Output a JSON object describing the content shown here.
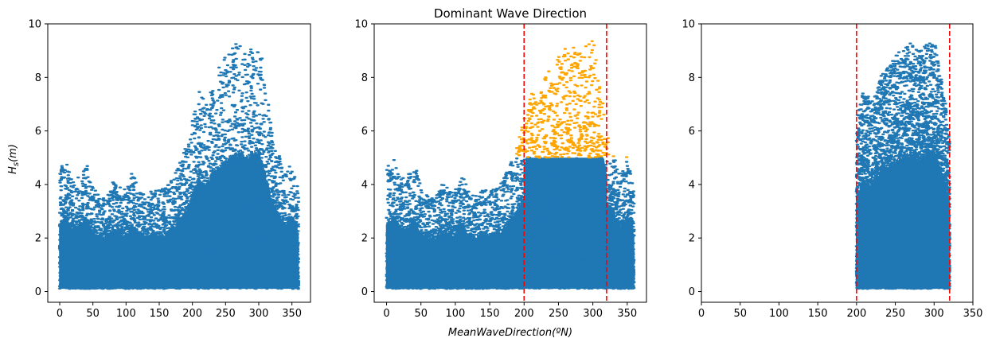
{
  "figure": {
    "title": "Dominant Wave Direction",
    "xlabel": "MeanWaveDirection(ºN)",
    "ylabel": "H_s(m)"
  },
  "colors": {
    "base_points": "#1f77b4",
    "highlight_points": "#ffa500",
    "threshold_lines": "#ff0000"
  },
  "chart_data": [
    {
      "type": "scatter",
      "panel": "left",
      "xlim": [
        -18,
        378
      ],
      "ylim": [
        -0.4,
        10
      ],
      "xticks": [
        0,
        50,
        100,
        150,
        200,
        250,
        300,
        350
      ],
      "yticks": [
        0,
        2,
        4,
        6,
        8,
        10
      ],
      "grid": false,
      "envelope_x": [
        0,
        10,
        20,
        30,
        40,
        50,
        60,
        70,
        80,
        90,
        100,
        110,
        120,
        130,
        140,
        150,
        160,
        170,
        180,
        190,
        200,
        210,
        220,
        230,
        240,
        250,
        260,
        270,
        280,
        290,
        300,
        310,
        320,
        330,
        340,
        350,
        360
      ],
      "envelope_hs_max": [
        4.6,
        5.0,
        4.2,
        4.3,
        4.9,
        3.9,
        3.6,
        3.5,
        4.1,
        3.9,
        3.8,
        4.6,
        3.7,
        3.6,
        3.8,
        3.8,
        3.9,
        4.2,
        4.8,
        5.4,
        6.5,
        7.6,
        7.1,
        8.0,
        8.4,
        8.8,
        9.2,
        9.3,
        9.0,
        9.3,
        9.5,
        8.0,
        6.0,
        5.2,
        4.4,
        5.1,
        3.9
      ],
      "hs_min": 0.1
    },
    {
      "type": "scatter",
      "panel": "middle",
      "xlim": [
        -18,
        378
      ],
      "ylim": [
        -0.4,
        10
      ],
      "xticks": [
        0,
        50,
        100,
        150,
        200,
        250,
        300,
        350
      ],
      "yticks": [
        0,
        2,
        4,
        6,
        8,
        10
      ],
      "grid": false,
      "direction_window": [
        200,
        320
      ],
      "hs_threshold": 5.0,
      "envelope_x": [
        0,
        10,
        20,
        30,
        40,
        50,
        60,
        70,
        80,
        90,
        100,
        110,
        120,
        130,
        140,
        150,
        160,
        170,
        180,
        190,
        200,
        210,
        220,
        230,
        240,
        250,
        260,
        270,
        280,
        290,
        300,
        310,
        320,
        330,
        340,
        350,
        360
      ],
      "envelope_hs_max": [
        4.6,
        5.0,
        4.2,
        4.3,
        4.9,
        3.9,
        3.6,
        3.5,
        4.1,
        3.9,
        3.8,
        4.6,
        3.7,
        3.6,
        3.8,
        3.8,
        3.9,
        4.2,
        4.8,
        5.4,
        6.5,
        7.6,
        7.1,
        8.0,
        8.4,
        8.8,
        9.2,
        9.3,
        9.0,
        9.3,
        9.5,
        8.0,
        6.0,
        5.2,
        4.4,
        5.1,
        3.9
      ],
      "hs_min": 0.1
    },
    {
      "type": "scatter",
      "panel": "right",
      "xlim": [
        0,
        350
      ],
      "ylim": [
        -0.4,
        10
      ],
      "xticks": [
        0,
        50,
        100,
        150,
        200,
        250,
        300,
        350
      ],
      "yticks": [
        0,
        2,
        4,
        6,
        8,
        10
      ],
      "grid": false,
      "direction_window": [
        200,
        320
      ],
      "envelope_x": [
        200,
        210,
        220,
        230,
        240,
        250,
        260,
        270,
        280,
        290,
        300,
        310,
        320
      ],
      "envelope_hs_max": [
        6.5,
        7.6,
        7.1,
        8.0,
        8.4,
        8.8,
        9.2,
        9.3,
        9.0,
        9.3,
        9.5,
        8.0,
        6.0
      ],
      "hs_min": 0.1
    }
  ]
}
